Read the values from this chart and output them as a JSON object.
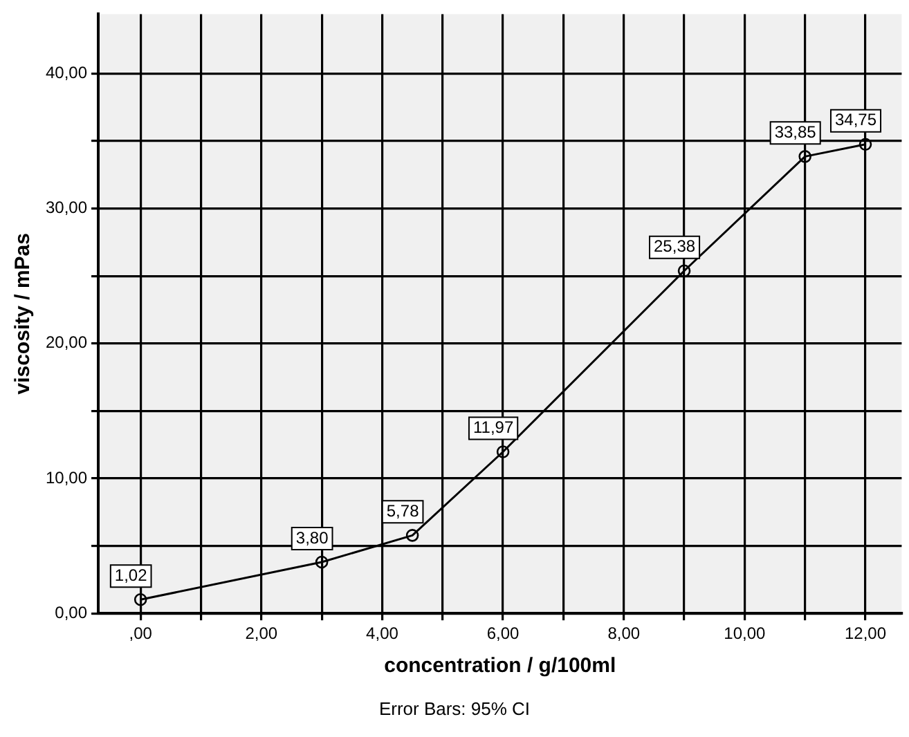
{
  "chart_data": {
    "type": "line",
    "xlabel": "concentration / g/100ml",
    "ylabel": "viscosity / mPas",
    "annotations": [
      "Error Bars: 95% CI"
    ],
    "x": [
      0,
      3,
      4.5,
      6,
      9,
      11,
      12
    ],
    "series": [
      {
        "color": "#000000",
        "values": [
          1.02,
          3.8,
          5.78,
          11.97,
          25.38,
          33.85,
          34.75
        ],
        "value_labels": [
          "1,02",
          "3,80",
          "5,78",
          "11,97",
          "25,38",
          "33,85",
          "34,75"
        ]
      }
    ],
    "xlim": [
      -0.7,
      12.6
    ],
    "ylim": [
      0,
      44.4
    ],
    "xticks": [
      {
        "value": 0,
        "label": ",00"
      },
      {
        "value": 1,
        "label": null
      },
      {
        "value": 2,
        "label": "2,00"
      },
      {
        "value": 3,
        "label": null
      },
      {
        "value": 4,
        "label": "4,00"
      },
      {
        "value": 5,
        "label": null
      },
      {
        "value": 6,
        "label": "6,00"
      },
      {
        "value": 7,
        "label": null
      },
      {
        "value": 8,
        "label": "8,00"
      },
      {
        "value": 9,
        "label": null
      },
      {
        "value": 10,
        "label": "10,00"
      },
      {
        "value": 11,
        "label": null
      },
      {
        "value": 12,
        "label": "12,00"
      }
    ],
    "yticks": [
      {
        "value": 0,
        "label": "0,00"
      },
      {
        "value": 5,
        "label": null
      },
      {
        "value": 10,
        "label": "10,00"
      },
      {
        "value": 15,
        "label": null
      },
      {
        "value": 20,
        "label": "20,00"
      },
      {
        "value": 25,
        "label": null
      },
      {
        "value": 30,
        "label": "30,00"
      },
      {
        "value": 35,
        "label": null
      },
      {
        "value": 40,
        "label": "40,00"
      }
    ],
    "grid": true,
    "marker": "circle",
    "line_style": "solid",
    "legend": false
  }
}
